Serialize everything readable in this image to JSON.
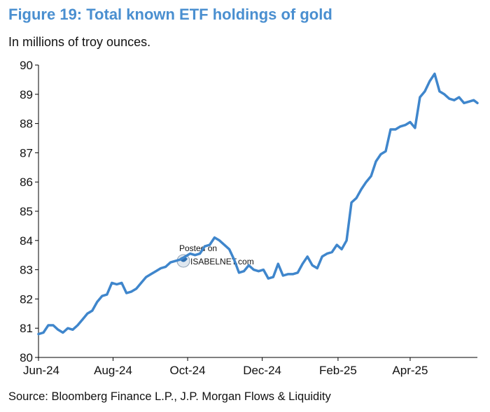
{
  "title": "Figure 19: Total known ETF holdings of gold",
  "subtitle": "In millions of troy ounces.",
  "source": "Source: Bloomberg Finance L.P., J.P. Morgan Flows & Liquidity",
  "watermark": {
    "line1": "Posted on",
    "line2": "ISABELNET.com"
  },
  "colors": {
    "line": "#3f86cc",
    "title": "#4a8fd0",
    "axis": "#000000"
  },
  "chart_data": {
    "type": "line",
    "title": "Figure 19: Total known ETF holdings of gold",
    "subtitle": "In millions of troy ounces.",
    "xlabel": "",
    "ylabel": "",
    "ylim": [
      80,
      90
    ],
    "y_ticks": [
      80,
      81,
      82,
      83,
      84,
      85,
      86,
      87,
      88,
      89,
      90
    ],
    "x_ticks": [
      "Jun-24",
      "Aug-24",
      "Oct-24",
      "Dec-24",
      "Feb-25",
      "Apr-25"
    ],
    "x_range": [
      "2024-06-01",
      "2025-05-26"
    ],
    "grid": false,
    "legend": "none",
    "series": [
      {
        "x": [
          "2024-06-01",
          "2024-06-05",
          "2024-06-09",
          "2024-06-13",
          "2024-06-17",
          "2024-06-21",
          "2024-06-25",
          "2024-06-29",
          "2024-07-03",
          "2024-07-07",
          "2024-07-11",
          "2024-07-15",
          "2024-07-19",
          "2024-07-23",
          "2024-07-27",
          "2024-07-31",
          "2024-08-04",
          "2024-08-08",
          "2024-08-12",
          "2024-08-16",
          "2024-08-20",
          "2024-08-24",
          "2024-08-28",
          "2024-09-01",
          "2024-09-05",
          "2024-09-09",
          "2024-09-13",
          "2024-09-17",
          "2024-09-21",
          "2024-09-25",
          "2024-09-29",
          "2024-10-03",
          "2024-10-07",
          "2024-10-11",
          "2024-10-15",
          "2024-10-19",
          "2024-10-23",
          "2024-10-27",
          "2024-10-31",
          "2024-11-04",
          "2024-11-08",
          "2024-11-12",
          "2024-11-16",
          "2024-11-20",
          "2024-11-24",
          "2024-11-28",
          "2024-12-02",
          "2024-12-06",
          "2024-12-10",
          "2024-12-14",
          "2024-12-18",
          "2024-12-22",
          "2024-12-26",
          "2024-12-30",
          "2025-01-03",
          "2025-01-07",
          "2025-01-11",
          "2025-01-15",
          "2025-01-19",
          "2025-01-23",
          "2025-01-27",
          "2025-01-31",
          "2025-02-04",
          "2025-02-08",
          "2025-02-12",
          "2025-02-16",
          "2025-02-20",
          "2025-02-24",
          "2025-02-28",
          "2025-03-04",
          "2025-03-08",
          "2025-03-12",
          "2025-03-16",
          "2025-03-20",
          "2025-03-24",
          "2025-03-28",
          "2025-04-01",
          "2025-04-05",
          "2025-04-09",
          "2025-04-13",
          "2025-04-17",
          "2025-04-21",
          "2025-04-25",
          "2025-04-29",
          "2025-05-03",
          "2025-05-07",
          "2025-05-11",
          "2025-05-15",
          "2025-05-19",
          "2025-05-23",
          "2025-05-26"
        ],
        "y": [
          80.8,
          80.85,
          81.1,
          81.1,
          80.95,
          80.85,
          81.0,
          80.95,
          81.1,
          81.3,
          81.5,
          81.6,
          81.9,
          82.1,
          82.15,
          82.55,
          82.5,
          82.55,
          82.2,
          82.25,
          82.35,
          82.55,
          82.75,
          82.85,
          82.95,
          83.05,
          83.1,
          83.25,
          83.3,
          83.35,
          83.45,
          83.55,
          83.5,
          83.55,
          83.8,
          83.85,
          84.1,
          84.0,
          83.85,
          83.7,
          83.35,
          82.9,
          82.95,
          83.15,
          83.0,
          82.95,
          83.0,
          82.7,
          82.75,
          83.2,
          82.8,
          82.85,
          82.85,
          82.9,
          83.2,
          83.45,
          83.15,
          83.05,
          83.45,
          83.55,
          83.6,
          83.85,
          83.7,
          84.0,
          85.3,
          85.45,
          85.75,
          86.0,
          86.2,
          86.7,
          86.95,
          87.05,
          87.8,
          87.8,
          87.9,
          87.95,
          88.05,
          87.85,
          88.9,
          89.1,
          89.45,
          89.7,
          89.1,
          89.0,
          88.85,
          88.8,
          88.9,
          88.7,
          88.75,
          88.8,
          88.7
        ]
      }
    ]
  }
}
